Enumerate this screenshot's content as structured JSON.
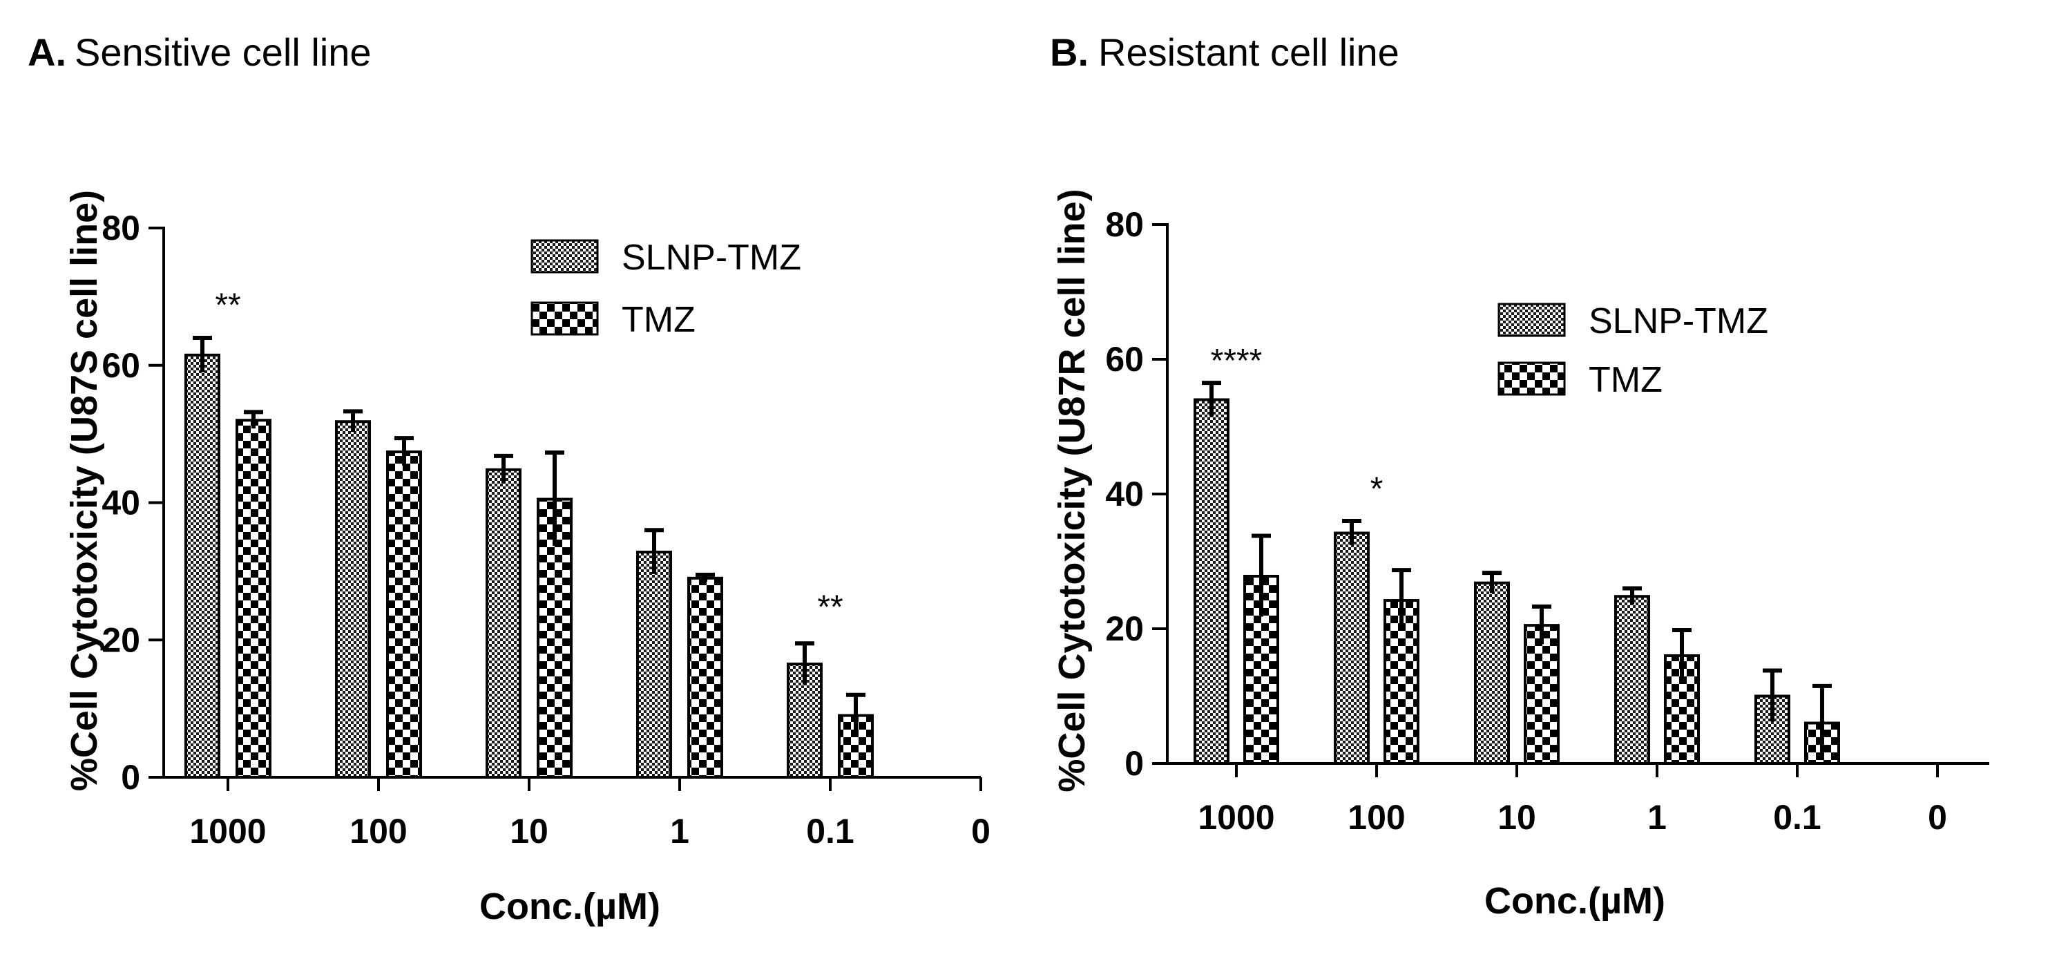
{
  "chart_data": [
    {
      "type": "bar",
      "panel_letter": "A.",
      "title": "Sensitive cell line",
      "xlabel": "Conc.(µM)",
      "ylabel": "%Cell Cytotoxicity (U87S cell line)",
      "ylim": [
        0,
        80
      ],
      "yticks": [
        "0",
        "20",
        "40",
        "60",
        "80"
      ],
      "categories": [
        "1000",
        "100",
        "10",
        "1",
        "0.1",
        "0"
      ],
      "series": [
        {
          "name": "SLNP-TMZ",
          "pattern": "fine",
          "values": [
            61.5,
            51.8,
            44.8,
            32.8,
            16.5,
            0
          ],
          "errors": [
            2.5,
            1.5,
            2.0,
            3.2,
            3.0,
            0
          ]
        },
        {
          "name": "TMZ",
          "pattern": "checker",
          "values": [
            52.0,
            47.4,
            40.5,
            29.0,
            9.0,
            0
          ],
          "errors": [
            1.2,
            2.0,
            6.8,
            0.5,
            3.0,
            0
          ]
        }
      ],
      "annotations": [
        {
          "category": "1000",
          "text": "**",
          "y": 69
        },
        {
          "category": "0.1",
          "text": "**",
          "y": 25
        }
      ],
      "legend_position": "top-right"
    },
    {
      "type": "bar",
      "panel_letter": "B.",
      "title": "Resistant cell line",
      "xlabel": "Conc.(µM)",
      "ylabel": "%Cell Cytotoxicity (U87R cell line)",
      "ylim": [
        0,
        80
      ],
      "yticks": [
        "0",
        "20",
        "40",
        "60",
        "80"
      ],
      "categories": [
        "1000",
        "100",
        "10",
        "1",
        "0.1",
        "0"
      ],
      "series": [
        {
          "name": "SLNP-TMZ",
          "pattern": "fine",
          "values": [
            54.0,
            34.2,
            26.8,
            24.8,
            10.0,
            0
          ],
          "errors": [
            2.5,
            1.8,
            1.5,
            1.2,
            3.8,
            0
          ]
        },
        {
          "name": "TMZ",
          "pattern": "checker",
          "values": [
            27.8,
            24.2,
            20.5,
            16.0,
            6.0,
            0
          ],
          "errors": [
            6.0,
            4.5,
            2.8,
            3.8,
            5.5,
            0
          ]
        }
      ],
      "annotations": [
        {
          "category": "1000",
          "text": "****",
          "y": 60
        },
        {
          "category": "100",
          "text": "*",
          "y": 41
        }
      ],
      "legend_position": "top-right"
    }
  ]
}
